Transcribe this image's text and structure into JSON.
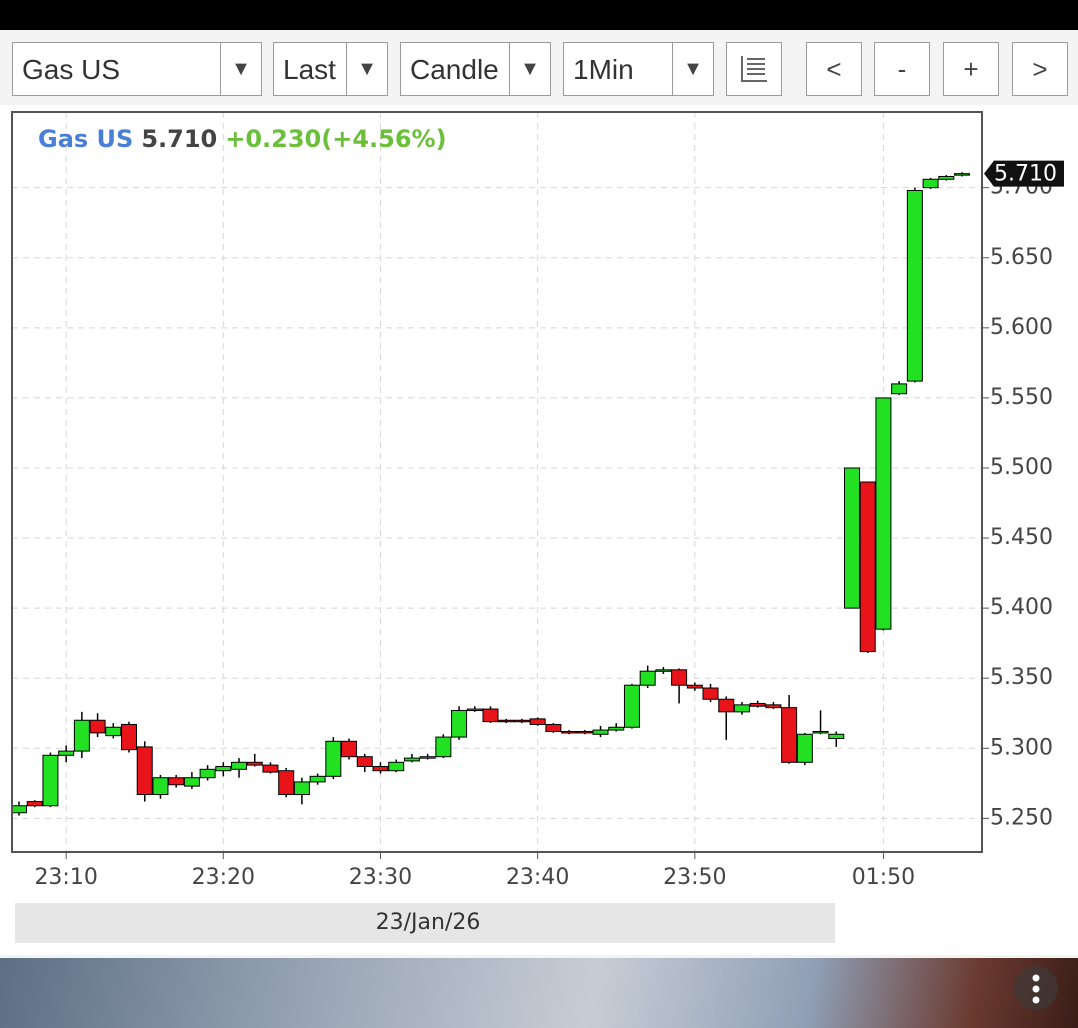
{
  "toolbar": {
    "symbol": "Gas US",
    "price_type": "Last",
    "chart_type": "Candle",
    "interval": "1Min",
    "buttons": [
      "<",
      "-",
      "+",
      ">"
    ]
  },
  "chart_data": {
    "type": "candlestick",
    "title": "Gas US",
    "last_price": "5.710",
    "change": "+0.230(+4.56%)",
    "price_tag": {
      "value": 5.71,
      "label": "5.710"
    },
    "date_label": "23/Jan/26",
    "categories": [
      null,
      null,
      null,
      "23:10",
      null,
      null,
      null,
      null,
      null,
      null,
      null,
      null,
      null,
      "23:20",
      null,
      null,
      null,
      null,
      null,
      null,
      null,
      null,
      null,
      "23:30",
      null,
      null,
      null,
      null,
      null,
      null,
      null,
      null,
      null,
      "23:40",
      null,
      null,
      null,
      null,
      null,
      null,
      null,
      null,
      null,
      "23:50",
      null,
      null,
      null,
      null,
      null,
      null,
      null,
      null,
      null,
      null,
      null,
      "01:50",
      null,
      null,
      null,
      null,
      null
    ],
    "open": [
      5.254,
      5.262,
      5.259,
      5.295,
      5.298,
      5.32,
      5.309,
      5.317,
      5.301,
      5.267,
      5.279,
      5.273,
      5.279,
      5.284,
      5.285,
      5.29,
      5.288,
      5.284,
      5.267,
      5.276,
      5.28,
      5.305,
      5.294,
      5.287,
      5.284,
      5.291,
      5.293,
      5.294,
      5.308,
      5.327,
      5.328,
      5.32,
      5.32,
      5.321,
      5.317,
      5.312,
      5.312,
      5.31,
      5.313,
      5.315,
      5.345,
      5.355,
      5.356,
      5.345,
      5.343,
      5.335,
      5.326,
      5.332,
      5.331,
      5.329,
      5.29,
      5.311,
      5.307,
      5.4,
      5.49,
      5.385,
      5.553,
      5.562,
      5.7,
      5.706,
      5.709
    ],
    "high": [
      5.262,
      5.263,
      5.297,
      5.302,
      5.326,
      5.325,
      5.318,
      5.319,
      5.305,
      5.281,
      5.281,
      5.283,
      5.288,
      5.29,
      5.293,
      5.296,
      5.29,
      5.286,
      5.279,
      5.282,
      5.308,
      5.307,
      5.296,
      5.29,
      5.292,
      5.296,
      5.296,
      5.31,
      5.33,
      5.33,
      5.33,
      5.321,
      5.321,
      5.322,
      5.318,
      5.313,
      5.313,
      5.316,
      5.318,
      5.346,
      5.359,
      5.358,
      5.357,
      5.347,
      5.346,
      5.337,
      5.333,
      5.334,
      5.333,
      5.338,
      5.311,
      5.327,
      5.312,
      5.5,
      5.49,
      5.55,
      5.562,
      5.7,
      5.707,
      5.709,
      5.711
    ],
    "low": [
      5.252,
      5.258,
      5.258,
      5.29,
      5.293,
      5.308,
      5.307,
      5.297,
      5.262,
      5.264,
      5.272,
      5.271,
      5.277,
      5.28,
      5.279,
      5.287,
      5.282,
      5.265,
      5.26,
      5.274,
      5.278,
      5.292,
      5.283,
      5.282,
      5.283,
      5.29,
      5.292,
      5.293,
      5.306,
      5.326,
      5.318,
      5.318,
      5.318,
      5.316,
      5.311,
      5.31,
      5.31,
      5.308,
      5.312,
      5.314,
      5.343,
      5.353,
      5.332,
      5.341,
      5.333,
      5.306,
      5.324,
      5.329,
      5.328,
      5.289,
      5.288,
      5.31,
      5.301,
      5.4,
      5.368,
      5.384,
      5.552,
      5.561,
      5.699,
      5.705,
      5.708
    ],
    "close": [
      5.259,
      5.259,
      5.295,
      5.298,
      5.32,
      5.311,
      5.315,
      5.299,
      5.267,
      5.279,
      5.274,
      5.279,
      5.285,
      5.287,
      5.29,
      5.288,
      5.283,
      5.267,
      5.276,
      5.28,
      5.305,
      5.294,
      5.287,
      5.284,
      5.29,
      5.293,
      5.294,
      5.308,
      5.327,
      5.328,
      5.319,
      5.319,
      5.319,
      5.317,
      5.312,
      5.311,
      5.311,
      5.313,
      5.315,
      5.345,
      5.355,
      5.356,
      5.345,
      5.343,
      5.335,
      5.326,
      5.331,
      5.33,
      5.329,
      5.29,
      5.31,
      5.312,
      5.31,
      5.5,
      5.369,
      5.55,
      5.56,
      5.698,
      5.706,
      5.708,
      5.71
    ],
    "up_color": "#22e022",
    "down_color": "#e8141a",
    "ylim": [
      5.226,
      5.754
    ],
    "yticks": [
      {
        "value": 5.25,
        "label": "5.250"
      },
      {
        "value": 5.3,
        "label": "5.300"
      },
      {
        "value": 5.35,
        "label": "5.350"
      },
      {
        "value": 5.4,
        "label": "5.400"
      },
      {
        "value": 5.45,
        "label": "5.450"
      },
      {
        "value": 5.5,
        "label": "5.500"
      },
      {
        "value": 5.55,
        "label": "5.550"
      },
      {
        "value": 5.6,
        "label": "5.600"
      },
      {
        "value": 5.65,
        "label": "5.650"
      },
      {
        "value": 5.7,
        "label": "5.700"
      }
    ],
    "grid": true
  }
}
